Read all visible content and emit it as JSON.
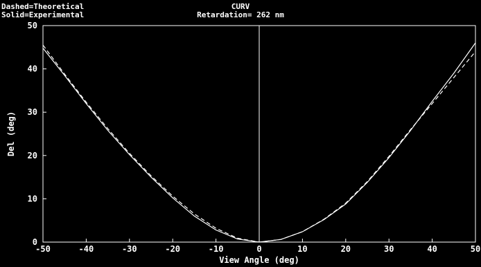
{
  "legend": {
    "dashed_label": "Dashed=Theoretical",
    "solid_label": "Solid=Experimental"
  },
  "header": {
    "title": "CURV",
    "subtitle": "Retardation= 262 nm"
  },
  "chart_data": {
    "type": "line",
    "title": "CURV",
    "subtitle": "Retardation= 262 nm",
    "xlabel": "View Angle (deg)",
    "ylabel": "Del (deg)",
    "xlim": [
      -50,
      50
    ],
    "ylim": [
      0,
      50
    ],
    "xticks": [
      -50,
      -40,
      -30,
      -20,
      -10,
      0,
      10,
      20,
      30,
      40,
      50
    ],
    "yticks": [
      0,
      10,
      20,
      30,
      40,
      50
    ],
    "grid": false,
    "background": "#000000",
    "line_color": "#ffffff",
    "series": [
      {
        "name": "Experimental",
        "style": "solid",
        "x": [
          -50,
          -45,
          -40,
          -35,
          -30,
          -25,
          -20,
          -15,
          -10,
          -5,
          0,
          5,
          10,
          15,
          20,
          25,
          30,
          35,
          40,
          45,
          50
        ],
        "y": [
          44.8,
          38.5,
          32.0,
          25.8,
          20.2,
          15.0,
          10.2,
          6.0,
          2.8,
          0.7,
          0.0,
          0.6,
          2.4,
          5.2,
          8.8,
          13.8,
          19.5,
          25.8,
          32.5,
          39.0,
          46.0
        ]
      },
      {
        "name": "Theoretical",
        "style": "dashed",
        "x": [
          -50,
          -45,
          -40,
          -35,
          -30,
          -25,
          -20,
          -15,
          -10,
          -5,
          0,
          5,
          10,
          15,
          20,
          25,
          30,
          35,
          40,
          45,
          50
        ],
        "y": [
          45.5,
          38.8,
          32.3,
          26.2,
          20.5,
          15.3,
          10.6,
          6.5,
          3.2,
          0.9,
          0.0,
          0.6,
          2.4,
          5.3,
          9.0,
          14.0,
          19.8,
          26.0,
          32.0,
          38.0,
          44.0
        ]
      }
    ]
  }
}
